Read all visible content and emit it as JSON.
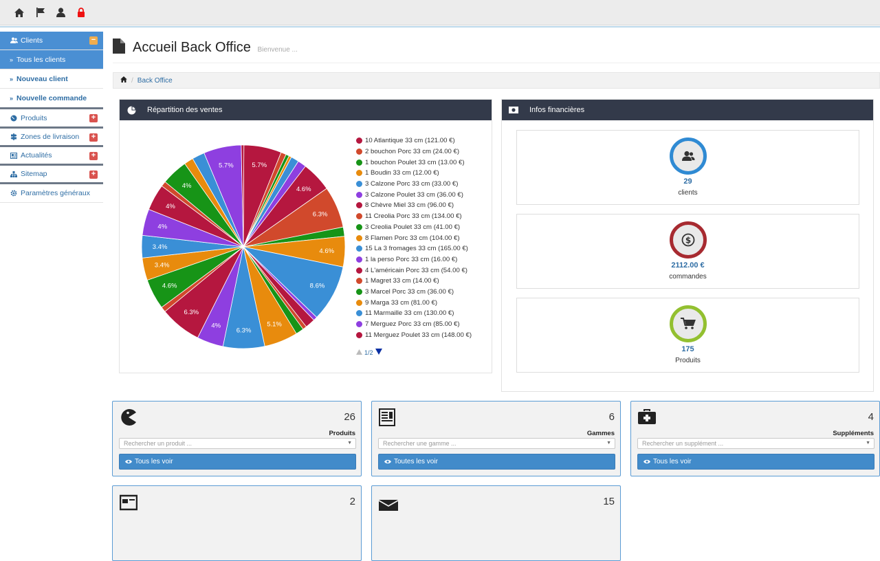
{
  "topbar": {
    "icons": [
      "home-icon",
      "flag-icon",
      "user-icon",
      "lock-icon"
    ]
  },
  "sidebar": {
    "items": [
      {
        "label": "Clients",
        "icon": "users-icon",
        "toggle": "−"
      },
      {
        "label": "Tous les clients"
      },
      {
        "label": "Nouveau client"
      },
      {
        "label": "Nouvelle commande"
      },
      {
        "label": "Produits",
        "icon": "globe-icon",
        "toggle": "+"
      },
      {
        "label": "Zones de livraison",
        "icon": "signpost-icon",
        "toggle": "+"
      },
      {
        "label": "Actualités",
        "icon": "news-icon",
        "toggle": "+"
      },
      {
        "label": "Sitemap",
        "icon": "sitemap-icon",
        "toggle": "+"
      },
      {
        "label": "Paramètres généraux",
        "icon": "gear-icon"
      }
    ]
  },
  "header": {
    "title": "Accueil Back Office",
    "subtitle": "Bienvenue ..."
  },
  "breadcrumb": {
    "current": "Back Office"
  },
  "sales_panel": {
    "title": "Répartition des ventes",
    "pager": "1/2"
  },
  "chart_data": {
    "type": "pie",
    "slice_labels": [
      {
        "pct": 5.7,
        "label": "5.7%"
      },
      {
        "pct": 6.3,
        "label": "6.3%"
      },
      {
        "pct": 4.6,
        "label": "4.6%"
      },
      {
        "pct": 8.6,
        "label": "8.6%"
      },
      {
        "pct": 5.1,
        "label": "5.1%"
      },
      {
        "pct": 6.3,
        "label": "6.3%"
      },
      {
        "pct": 4.0,
        "label": "4%"
      },
      {
        "pct": 6.3,
        "label": "6.3%"
      },
      {
        "pct": 4.6,
        "label": "4.6%"
      },
      {
        "pct": 3.4,
        "label": "3.4%"
      },
      {
        "pct": 3.4,
        "label": "3.4%"
      },
      {
        "pct": 4.0,
        "label": "4%"
      },
      {
        "pct": 4.0,
        "label": "4%"
      },
      {
        "pct": 4.0,
        "label": "4%"
      },
      {
        "pct": 5.7,
        "label": "5.7%"
      },
      {
        "pct": 4.6,
        "label": "4.6%"
      }
    ],
    "slices": [
      {
        "pct": 5.7,
        "color": "#b5173f",
        "label": "5.7%"
      },
      {
        "pct": 0.8,
        "color": "#d1492c",
        "label": ""
      },
      {
        "pct": 0.5,
        "color": "#179417",
        "label": ""
      },
      {
        "pct": 0.4,
        "color": "#e88b0d",
        "label": ""
      },
      {
        "pct": 1.2,
        "color": "#3a8fd6",
        "label": ""
      },
      {
        "pct": 1.3,
        "color": "#8e3fe0",
        "label": ""
      },
      {
        "pct": 4.6,
        "color": "#b5173f",
        "label": "4.6%"
      },
      {
        "pct": 6.3,
        "color": "#d1492c",
        "label": "6.3%"
      },
      {
        "pct": 1.4,
        "color": "#179417",
        "label": ""
      },
      {
        "pct": 4.6,
        "color": "#e88b0d",
        "label": "4.6%"
      },
      {
        "pct": 8.6,
        "color": "#3a8fd6",
        "label": "8.6%"
      },
      {
        "pct": 0.6,
        "color": "#8e3fe0",
        "label": ""
      },
      {
        "pct": 1.5,
        "color": "#b5173f",
        "label": ""
      },
      {
        "pct": 0.6,
        "color": "#d1492c",
        "label": ""
      },
      {
        "pct": 1.2,
        "color": "#179417",
        "label": ""
      },
      {
        "pct": 5.1,
        "color": "#e88b0d",
        "label": "5.1%"
      },
      {
        "pct": 6.3,
        "color": "#3a8fd6",
        "label": "6.3%"
      },
      {
        "pct": 4.0,
        "color": "#8e3fe0",
        "label": "4%"
      },
      {
        "pct": 6.3,
        "color": "#b5173f",
        "label": "6.3%"
      },
      {
        "pct": 0.8,
        "color": "#d1492c",
        "label": ""
      },
      {
        "pct": 4.6,
        "color": "#179417",
        "label": "4.6%"
      },
      {
        "pct": 3.4,
        "color": "#e88b0d",
        "label": "3.4%"
      },
      {
        "pct": 3.4,
        "color": "#3a8fd6",
        "label": "3.4%"
      },
      {
        "pct": 4.0,
        "color": "#8e3fe0",
        "label": "4%"
      },
      {
        "pct": 4.0,
        "color": "#b5173f",
        "label": "4%"
      },
      {
        "pct": 0.8,
        "color": "#d1492c",
        "label": ""
      },
      {
        "pct": 4.0,
        "color": "#179417",
        "label": "4%"
      },
      {
        "pct": 1.4,
        "color": "#e88b0d",
        "label": ""
      },
      {
        "pct": 1.9,
        "color": "#3a8fd6",
        "label": ""
      },
      {
        "pct": 5.7,
        "color": "#8e3fe0",
        "label": "5.7%"
      },
      {
        "pct": 0.4,
        "color": "#b5173f",
        "label": ""
      }
    ],
    "legend": [
      {
        "label": "10 Atlantique 33 cm (121.00 €)",
        "color": "#b5173f"
      },
      {
        "label": "2 bouchon Porc 33 cm (24.00 €)",
        "color": "#d1492c"
      },
      {
        "label": "1 bouchon Poulet 33 cm (13.00 €)",
        "color": "#179417"
      },
      {
        "label": "1 Boudin 33 cm (12.00 €)",
        "color": "#e88b0d"
      },
      {
        "label": "3 Calzone Porc 33 cm (33.00 €)",
        "color": "#3a8fd6"
      },
      {
        "label": "3 Calzone Poulet 33 cm (36.00 €)",
        "color": "#8e3fe0"
      },
      {
        "label": "8 Chèvre Miel 33 cm (96.00 €)",
        "color": "#b5173f"
      },
      {
        "label": "11 Creolia Porc 33 cm (134.00 €)",
        "color": "#d1492c"
      },
      {
        "label": "3 Creolia Poulet 33 cm (41.00 €)",
        "color": "#179417"
      },
      {
        "label": "8 Flamen Porc 33 cm (104.00 €)",
        "color": "#e88b0d"
      },
      {
        "label": "15 La 3 fromages 33 cm (165.00 €)",
        "color": "#3a8fd6"
      },
      {
        "label": "1 la perso Porc 33 cm (16.00 €)",
        "color": "#8e3fe0"
      },
      {
        "label": "4 L'américain Porc 33 cm (54.00 €)",
        "color": "#b5173f"
      },
      {
        "label": "1 Magret 33 cm (14.00 €)",
        "color": "#d1492c"
      },
      {
        "label": "3 Marcel Porc 33 cm (36.00 €)",
        "color": "#179417"
      },
      {
        "label": "9 Marga 33 cm (81.00 €)",
        "color": "#e88b0d"
      },
      {
        "label": "11 Marmaille 33 cm (130.00 €)",
        "color": "#3a8fd6"
      },
      {
        "label": "7 Merguez Porc 33 cm (85.00 €)",
        "color": "#8e3fe0"
      },
      {
        "label": "11 Merguez Poulet 33 cm (148.00 €)",
        "color": "#b5173f"
      }
    ]
  },
  "fin_panel": {
    "title": "Infos financières",
    "stats": [
      {
        "value": "29",
        "label": "clients",
        "icon": "users-icon",
        "color": "#2f8ad3"
      },
      {
        "value": "2112.00 €",
        "label": "commandes",
        "icon": "dollar-icon",
        "color": "#a72a30"
      },
      {
        "value": "175",
        "label": "Produits",
        "icon": "cart-icon",
        "color": "#93c030"
      }
    ]
  },
  "cards": [
    {
      "count": "26",
      "name": "Produits",
      "placeholder": "Rechercher un produit ...",
      "button": "Tous les voir",
      "icon": "pacman-icon"
    },
    {
      "count": "6",
      "name": "Gammes",
      "placeholder": "Rechercher une gamme ...",
      "button": "Toutes les voir",
      "icon": "newspaper-icon"
    },
    {
      "count": "4",
      "name": "Suppléments",
      "placeholder": "Rechercher un supplément ...",
      "button": "Tous les voir",
      "icon": "medkit-icon"
    },
    {
      "count": "2",
      "icon": "news-icon"
    },
    {
      "count": "15",
      "icon": "envelope-icon"
    }
  ]
}
